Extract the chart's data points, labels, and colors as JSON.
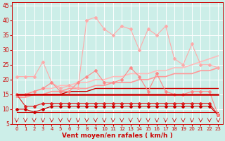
{
  "xlabel": "Vent moyen/en rafales ( km/h )",
  "bg_color": "#cceee8",
  "grid_color": "#ffffff",
  "xlim": [
    -0.5,
    23.5
  ],
  "ylim": [
    5,
    46
  ],
  "yticks": [
    5,
    10,
    15,
    20,
    25,
    30,
    35,
    40,
    45
  ],
  "xticks": [
    0,
    1,
    2,
    3,
    4,
    5,
    6,
    7,
    8,
    9,
    10,
    11,
    12,
    13,
    14,
    15,
    16,
    17,
    18,
    19,
    20,
    21,
    22,
    23
  ],
  "line_light_pink_x": [
    0,
    1,
    2,
    3,
    4,
    5,
    6,
    7,
    8,
    9,
    10,
    11,
    12,
    13,
    14,
    15,
    16,
    17,
    18,
    19,
    20,
    21,
    22,
    23
  ],
  "line_light_pink_y": [
    21,
    21,
    21,
    26,
    19,
    17,
    18,
    17,
    40,
    41,
    37,
    35,
    38,
    37,
    30,
    37,
    35,
    38,
    27,
    25,
    32,
    25,
    25,
    24
  ],
  "line_light_pink_color": "#ffaaaa",
  "line_med_pink_x": [
    0,
    1,
    2,
    3,
    4,
    5,
    6,
    7,
    8,
    9,
    10,
    11,
    12,
    13,
    14,
    15,
    16,
    17,
    18,
    19,
    20,
    21,
    22,
    23
  ],
  "line_med_pink_y": [
    15,
    15,
    16,
    17,
    19,
    16,
    16,
    19,
    21,
    23,
    19,
    19,
    20,
    24,
    21,
    16,
    22,
    16,
    15,
    15,
    16,
    16,
    16,
    8
  ],
  "line_med_pink_color": "#ff8888",
  "line_trend1_x": [
    0,
    1,
    2,
    3,
    4,
    5,
    6,
    7,
    8,
    9,
    10,
    11,
    12,
    13,
    14,
    15,
    16,
    17,
    18,
    19,
    20,
    21,
    22,
    23
  ],
  "line_trend1_y": [
    14,
    15,
    16,
    17,
    17,
    18,
    18,
    19,
    19,
    20,
    20,
    21,
    21,
    22,
    22,
    22,
    23,
    23,
    24,
    24,
    25,
    26,
    27,
    28
  ],
  "line_trend1_color": "#ffbbbb",
  "line_trend2_x": [
    0,
    1,
    2,
    3,
    4,
    5,
    6,
    7,
    8,
    9,
    10,
    11,
    12,
    13,
    14,
    15,
    16,
    17,
    18,
    19,
    20,
    21,
    22,
    23
  ],
  "line_trend2_y": [
    14,
    14,
    15,
    15,
    16,
    16,
    17,
    17,
    17,
    18,
    18,
    19,
    19,
    19,
    20,
    20,
    21,
    21,
    22,
    22,
    22,
    23,
    23,
    24
  ],
  "line_trend2_color": "#ff9999",
  "line_dark1_x": [
    0,
    1,
    2,
    3,
    4,
    5,
    6,
    7,
    8,
    9,
    10,
    11,
    12,
    13,
    14,
    15,
    16,
    17,
    18,
    19,
    20,
    21,
    22,
    23
  ],
  "line_dark1_y": [
    15,
    15,
    15,
    15,
    15,
    15,
    15,
    15,
    15,
    15,
    15,
    15,
    15,
    15,
    15,
    15,
    15,
    15,
    15,
    15,
    15,
    15,
    15,
    15
  ],
  "line_dark1_color": "#cc0000",
  "line_dark2_x": [
    0,
    1,
    2,
    3,
    4,
    5,
    6,
    7,
    8,
    9,
    10,
    11,
    12,
    13,
    14,
    15,
    16,
    17,
    18,
    19,
    20,
    21,
    22,
    23
  ],
  "line_dark2_y": [
    15,
    15,
    15,
    15,
    15,
    15,
    16,
    16,
    16,
    17,
    17,
    17,
    17,
    17,
    17,
    17,
    17,
    17,
    17,
    17,
    17,
    17,
    17,
    17
  ],
  "line_dark2_color": "#cc0000",
  "line_darkmed1_x": [
    0,
    1,
    2,
    3,
    4,
    5,
    6,
    7,
    8,
    9,
    10,
    11,
    12,
    13,
    14,
    15,
    16,
    17,
    18,
    19,
    20,
    21,
    22,
    23
  ],
  "line_darkmed1_y": [
    15,
    11,
    11,
    12,
    12,
    12,
    12,
    12,
    12,
    12,
    12,
    12,
    12,
    12,
    12,
    12,
    12,
    12,
    12,
    12,
    12,
    12,
    12,
    8
  ],
  "line_darkmed1_color": "#dd2222",
  "line_darkmed2_x": [
    0,
    1,
    2,
    3,
    4,
    5,
    6,
    7,
    8,
    9,
    10,
    11,
    12,
    13,
    14,
    15,
    16,
    17,
    18,
    19,
    20,
    21,
    22,
    23
  ],
  "line_darkmed2_y": [
    10,
    10,
    9,
    10,
    11,
    11,
    11,
    11,
    11,
    11,
    11,
    11,
    11,
    11,
    11,
    11,
    11,
    11,
    11,
    11,
    11,
    11,
    11,
    8
  ],
  "line_darkmed2_color": "#cc0000",
  "line_bottom_x": [
    0,
    1,
    2,
    3,
    4,
    5,
    6,
    7,
    8,
    9,
    10,
    11,
    12,
    13,
    14,
    15,
    16,
    17,
    18,
    19,
    20,
    21,
    22,
    23
  ],
  "line_bottom_y": [
    9,
    9,
    9,
    9,
    9,
    9,
    9,
    9,
    9,
    9,
    9,
    9,
    9,
    9,
    9,
    9,
    9,
    9,
    9,
    9,
    9,
    9,
    9,
    9
  ],
  "line_bottom_color": "#cc0000",
  "arrow_color": "#cc0000"
}
